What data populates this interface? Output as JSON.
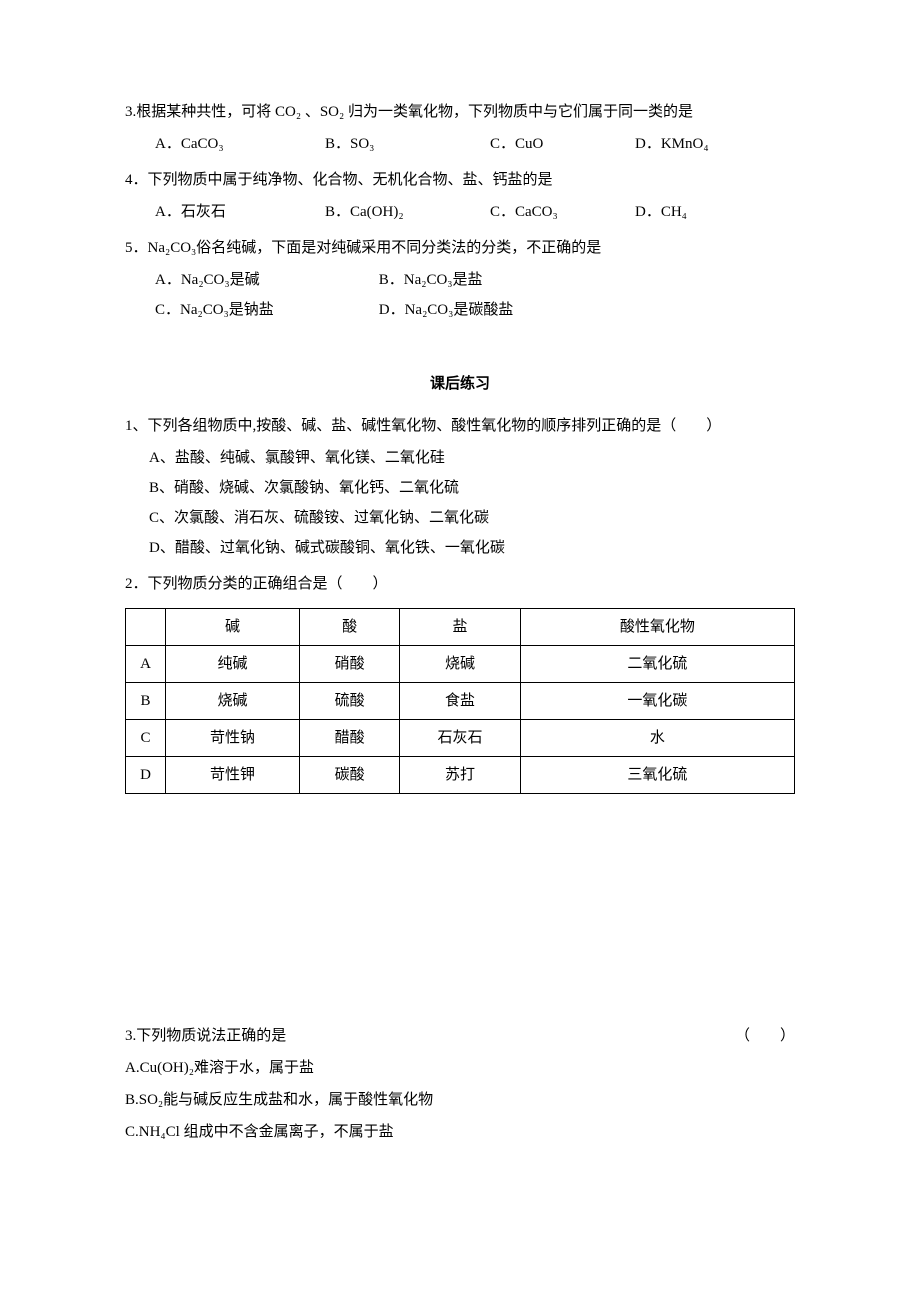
{
  "q3": {
    "text": "3.根据某种共性，可将 CO₂ 、SO₂ 归为一类氧化物，下列物质中与它们属于同一类的是",
    "opts": {
      "a": "A．CaCO₃",
      "b": "B．SO₃",
      "c": "C．CuO",
      "d": "D．KMnO₄"
    }
  },
  "q4": {
    "text": "4．下列物质中属于纯净物、化合物、无机化合物、盐、钙盐的是",
    "opts": {
      "a": "A．石灰石",
      "b": "B．Ca(OH)₂",
      "c": "C．CaCO₃",
      "d": "D．CH₄"
    }
  },
  "q5": {
    "text": "5．Na₂CO₃俗名纯碱，下面是对纯碱采用不同分类法的分类，不正确的是",
    "opts": {
      "a": "A．Na₂CO₃是碱",
      "b": "B．Na₂CO₃是盐",
      "c": "C．Na₂CO₃是钠盐",
      "d": "D．Na₂CO₃是碳酸盐"
    }
  },
  "section_title": "课后练习",
  "p1": {
    "text": "1、下列各组物质中,按酸、碱、盐、碱性氧化物、酸性氧化物的顺序排列正确的是（　　）",
    "opts": {
      "a": "A、盐酸、纯碱、氯酸钾、氧化镁、二氧化硅",
      "b": "B、硝酸、烧碱、次氯酸钠、氧化钙、二氧化硫",
      "c": "C、次氯酸、消石灰、硫酸铵、过氧化钠、二氧化碳",
      "d": "D、醋酸、过氧化钠、碱式碳酸铜、氧化铁、一氧化碳"
    }
  },
  "p2": {
    "text": "2．下列物质分类的正确组合是（　　）",
    "table": {
      "headers": [
        "",
        "碱",
        "酸",
        "盐",
        "酸性氧化物"
      ],
      "rows": [
        [
          "A",
          "纯碱",
          "硝酸",
          "烧碱",
          "二氧化硫"
        ],
        [
          "B",
          "烧碱",
          "硫酸",
          "食盐",
          "一氧化碳"
        ],
        [
          "C",
          "苛性钠",
          "醋酸",
          "石灰石",
          "水"
        ],
        [
          "D",
          "苛性钾",
          "碳酸",
          "苏打",
          "三氧化硫"
        ]
      ]
    }
  },
  "p3": {
    "text": "3.下列物质说法正确的是",
    "paren": "（　　）",
    "opts": {
      "a": "A.Cu(OH)₂难溶于水，属于盐",
      "b": "B.SO₂能与碱反应生成盐和水，属于酸性氧化物",
      "c": "C.NH₄Cl 组成中不含金属离子，不属于盐"
    }
  }
}
